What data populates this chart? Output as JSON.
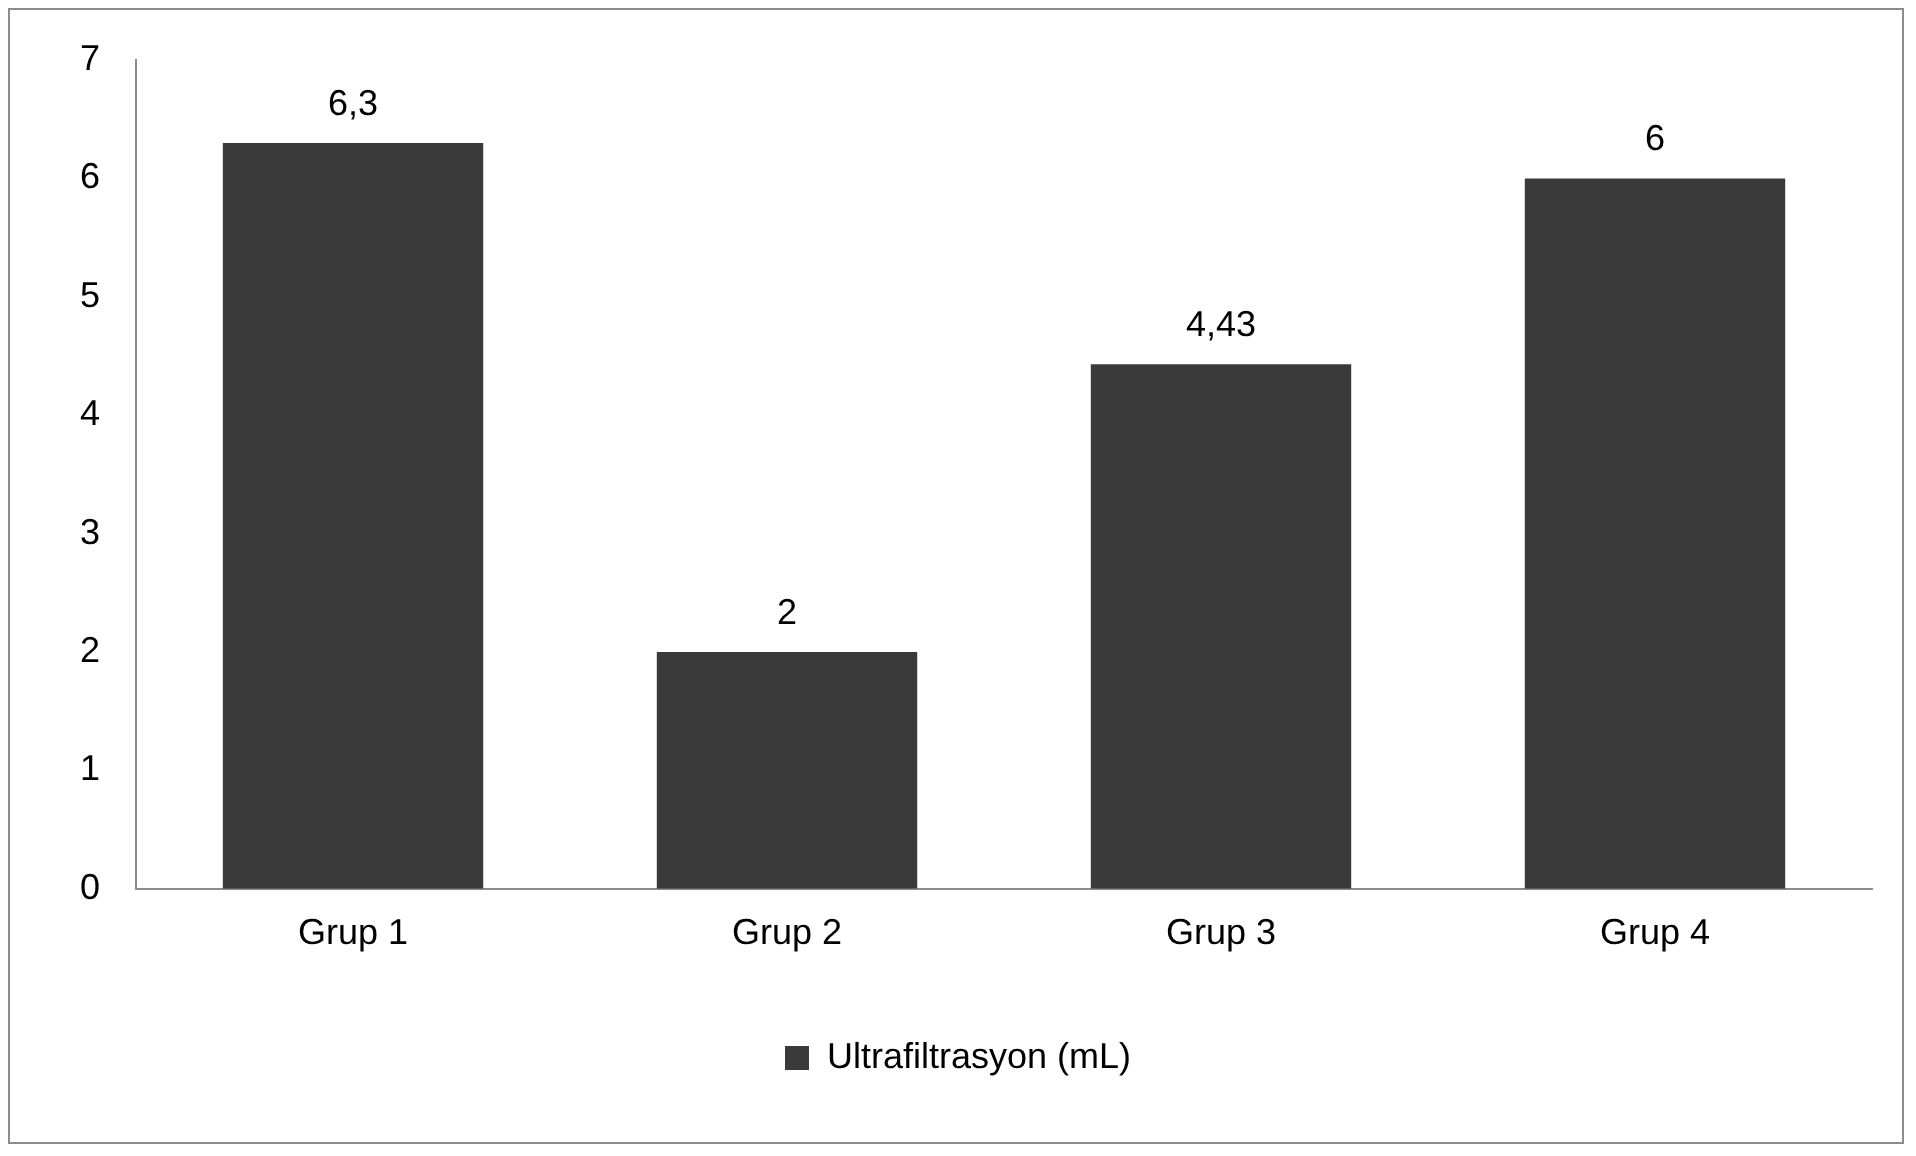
{
  "chart_data": {
    "type": "bar",
    "categories": [
      "Grup 1",
      "Grup 2",
      "Grup 3",
      "Grup 4"
    ],
    "series": [
      {
        "name": "Ultrafiltrasyon (mL)",
        "color": "#3a3a3a",
        "values": [
          6.3,
          2,
          4.43,
          6
        ],
        "value_labels": [
          "6,3",
          "2",
          "4,43",
          "6"
        ]
      }
    ],
    "ylim": [
      0,
      7
    ],
    "yticks": [
      0,
      1,
      2,
      3,
      4,
      5,
      6,
      7
    ],
    "grid": false,
    "legend": "bottom"
  }
}
